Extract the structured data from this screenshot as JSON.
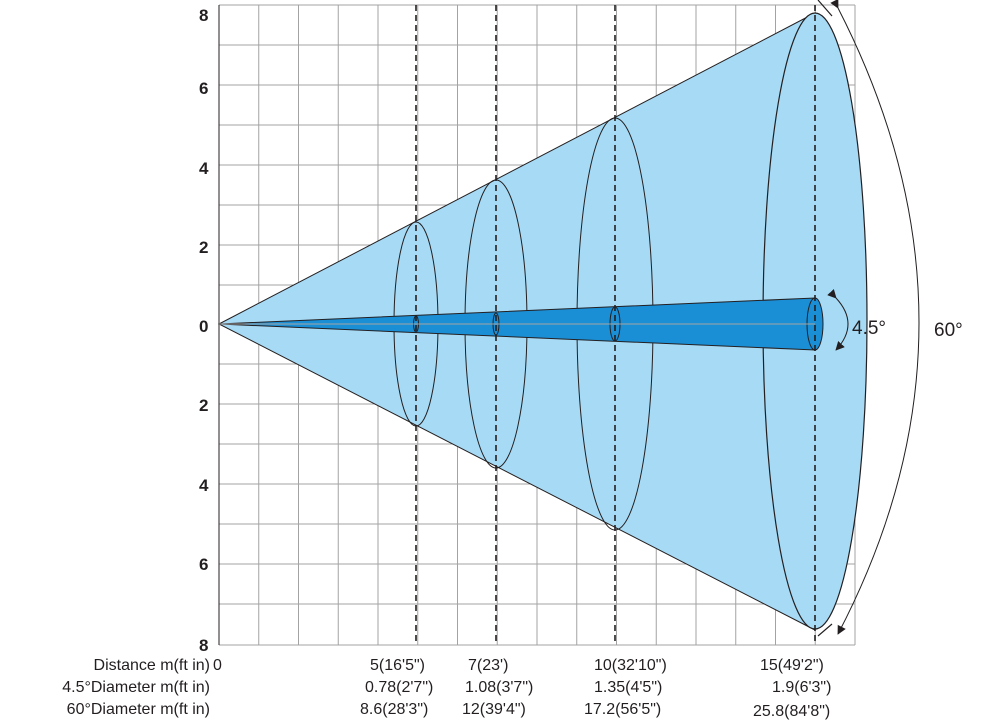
{
  "y_axis": {
    "tick_labels": [
      "8",
      "6",
      "4",
      "2",
      "0",
      "2",
      "4",
      "6",
      "8"
    ]
  },
  "beam_angles": {
    "narrow": "4.5°",
    "wide": "60°"
  },
  "table": {
    "row_labels": {
      "distance": "Distance  m(ft in)",
      "narrow_diameter": "4.5°Diameter  m(ft in)",
      "wide_diameter": "60°Diameter  m(ft in)"
    },
    "origin": "0",
    "columns": [
      {
        "distance": "5(16'5\")",
        "narrow": "0.78(2'7\")",
        "wide": "8.6(28'3\")"
      },
      {
        "distance": "7(23')",
        "narrow": "1.08(3'7\")",
        "wide": "12(39'4\")"
      },
      {
        "distance": "10(32'10\")",
        "narrow": "1.35(4'5\")",
        "wide": "17.2(56'5\")"
      },
      {
        "distance": "15(49'2\")",
        "narrow": "1.9(6'3\")",
        "wide": "25.8(84'8\")"
      }
    ]
  },
  "colors": {
    "wide_beam": "#a7daf5",
    "narrow_beam": "#1b8fd6",
    "grid": "#a3a3a3",
    "line": "#231f20"
  }
}
